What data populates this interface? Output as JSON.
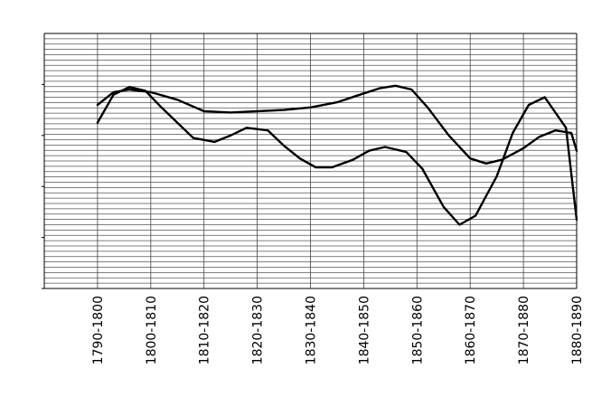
{
  "chart_data": {
    "type": "line",
    "title": "",
    "xlabel": "",
    "ylabel": "",
    "categories": [
      "1790-1800",
      "1800-1810",
      "1810-1820",
      "1820-1830",
      "1830-1840",
      "1840-1850",
      "1850-1860",
      "1860-1870",
      "1870-1880",
      "1880-1890"
    ],
    "xlim": [
      -1,
      9
    ],
    "ylim": [
      0,
      100
    ],
    "y_ticks": [
      0,
      20,
      40,
      60,
      80
    ],
    "grid": true,
    "legend": "none",
    "series": [
      {
        "color": "#000000",
        "points": [
          [
            0,
            72
          ],
          [
            0.3,
            77
          ],
          [
            0.6,
            78
          ],
          [
            1,
            77
          ],
          [
            1.5,
            74
          ],
          [
            2,
            69.5
          ],
          [
            2.5,
            69
          ],
          [
            3,
            69.5
          ],
          [
            3.5,
            70
          ],
          [
            4,
            71
          ],
          [
            4.5,
            73
          ],
          [
            5,
            76.5
          ],
          [
            5.3,
            78.5
          ],
          [
            5.6,
            79.5
          ],
          [
            5.9,
            78
          ],
          [
            6.2,
            71
          ],
          [
            6.6,
            60
          ],
          [
            7,
            51
          ],
          [
            7.3,
            49
          ],
          [
            7.6,
            50.5
          ],
          [
            8,
            55
          ],
          [
            8.3,
            59.5
          ],
          [
            8.6,
            62
          ],
          [
            8.9,
            61
          ],
          [
            9,
            54
          ]
        ]
      },
      {
        "color": "#000000",
        "points": [
          [
            0,
            65
          ],
          [
            0.3,
            76
          ],
          [
            0.6,
            79
          ],
          [
            0.9,
            77.5
          ],
          [
            1.2,
            71
          ],
          [
            1.5,
            65
          ],
          [
            1.8,
            59
          ],
          [
            2.2,
            57.5
          ],
          [
            2.5,
            60
          ],
          [
            2.8,
            63
          ],
          [
            3.2,
            62
          ],
          [
            3.5,
            56
          ],
          [
            3.8,
            51
          ],
          [
            4.1,
            47.5
          ],
          [
            4.4,
            47.5
          ],
          [
            4.8,
            50.5
          ],
          [
            5.1,
            54
          ],
          [
            5.4,
            55.5
          ],
          [
            5.8,
            53.5
          ],
          [
            6.1,
            47
          ],
          [
            6.5,
            32
          ],
          [
            6.8,
            25
          ],
          [
            7.1,
            28.5
          ],
          [
            7.5,
            44
          ],
          [
            7.8,
            61
          ],
          [
            8.1,
            72
          ],
          [
            8.4,
            75
          ],
          [
            8.8,
            63
          ],
          [
            9,
            27
          ]
        ]
      }
    ]
  }
}
